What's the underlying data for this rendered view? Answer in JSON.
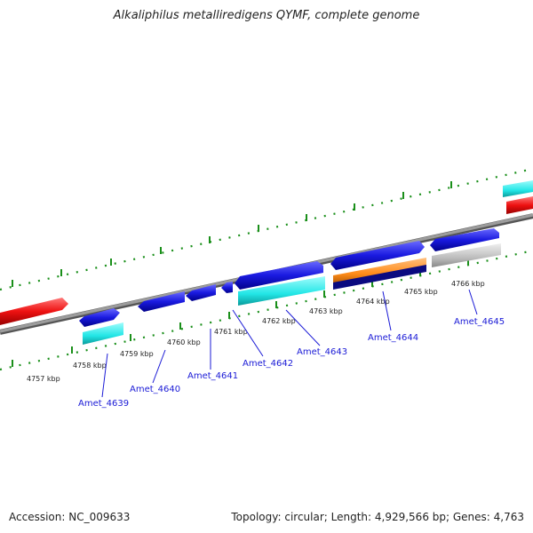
{
  "title": "Alkaliphilus metalliredigens QYMF, complete genome",
  "footer": {
    "accession": "Accession: NC_009633",
    "summary": "Topology: circular; Length: 4,929,566 bp; Genes: 4,763"
  },
  "colors": {
    "backbone": "#8a8a8a",
    "tick": "#1a8f1a",
    "gene_blue": "#1a1ae0",
    "gene_cyan": "#22e6e6",
    "gene_red": "#ee1111",
    "gene_orange": "#ff8c1a",
    "gene_navy": "#0a0a80",
    "gene_gray": "#bdbdbd",
    "label": "#1a1ad6"
  },
  "scale": {
    "unit": "kbp",
    "ticks": [
      {
        "value": 4757,
        "label": "4757 kbp"
      },
      {
        "value": 4758,
        "label": "4758 kbp"
      },
      {
        "value": 4759,
        "label": "4759 kbp"
      },
      {
        "value": 4760,
        "label": "4760 kbp"
      },
      {
        "value": 4761,
        "label": "4761 kbp"
      },
      {
        "value": 4762,
        "label": "4762 kbp"
      },
      {
        "value": 4763,
        "label": "4763 kbp"
      },
      {
        "value": 4764,
        "label": "4764 kbp"
      },
      {
        "value": 4765,
        "label": "4765 kbp"
      },
      {
        "value": 4766,
        "label": "4766 kbp"
      }
    ]
  },
  "genes": [
    {
      "locus": "Amet_4639"
    },
    {
      "locus": "Amet_4640"
    },
    {
      "locus": "Amet_4641"
    },
    {
      "locus": "Amet_4642"
    },
    {
      "locus": "Amet_4643"
    },
    {
      "locus": "Amet_4644"
    },
    {
      "locus": "Amet_4645"
    }
  ]
}
